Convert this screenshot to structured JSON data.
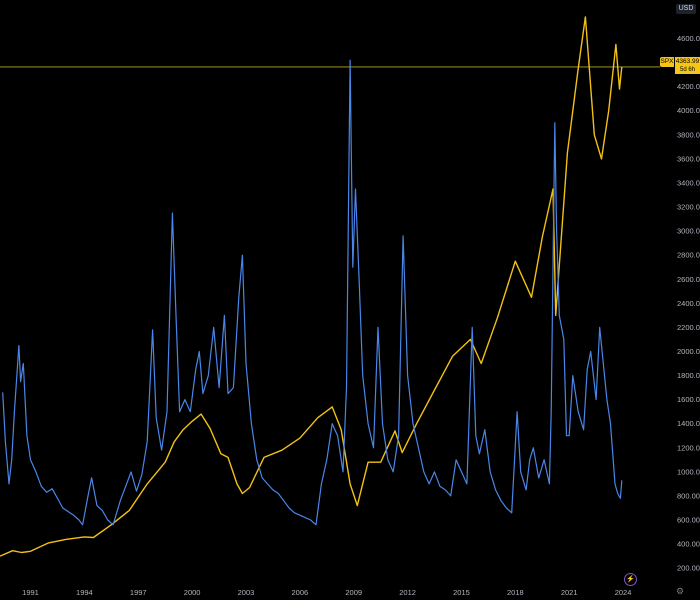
{
  "header": {
    "currency": "USD"
  },
  "price_tag": {
    "symbol": "SPX",
    "price": "4363.99",
    "countdown": "5d 6h"
  },
  "colors": {
    "spx": "#f2c114",
    "blue_series": "#4a86e8",
    "background": "#000000",
    "crosshair": "#b8a431"
  },
  "icons": {
    "lightning": "lightning-icon",
    "settings": "gear-icon"
  },
  "chart_data": {
    "type": "line",
    "x_unit": "year",
    "xlim": [
      1989.3,
      2025.5
    ],
    "ylim": [
      60,
      4920
    ],
    "y_ticks": [
      "200.00",
      "400.00",
      "600.00",
      "800.00",
      "1000.00",
      "1200.00",
      "1400.00",
      "1600.00",
      "1800.00",
      "2000.00",
      "2200.00",
      "2400.00",
      "2600.00",
      "2800.00",
      "3000.00",
      "3200.00",
      "3400.00",
      "3600.00",
      "3800.00",
      "4000.00",
      "4200.00",
      "4400.00",
      "4600.00"
    ],
    "x_ticks": [
      "1991",
      "1994",
      "1997",
      "2000",
      "2003",
      "2006",
      "2009",
      "2012",
      "2015",
      "2018",
      "2021",
      "2024"
    ],
    "current_price_line": 4363.99,
    "series": [
      {
        "name": "SPX",
        "points": [
          [
            1989.3,
            300
          ],
          [
            1990.0,
            345
          ],
          [
            1990.5,
            330
          ],
          [
            1991.0,
            340
          ],
          [
            1992.0,
            410
          ],
          [
            1993.0,
            440
          ],
          [
            1994.0,
            460
          ],
          [
            1994.5,
            455
          ],
          [
            1995.5,
            560
          ],
          [
            1996.5,
            680
          ],
          [
            1997.5,
            900
          ],
          [
            1998.5,
            1080
          ],
          [
            1999.0,
            1250
          ],
          [
            1999.5,
            1350
          ],
          [
            2000.0,
            1420
          ],
          [
            2000.5,
            1480
          ],
          [
            2001.0,
            1360
          ],
          [
            2001.6,
            1150
          ],
          [
            2002.0,
            1120
          ],
          [
            2002.5,
            900
          ],
          [
            2002.8,
            820
          ],
          [
            2003.2,
            870
          ],
          [
            2004.0,
            1120
          ],
          [
            2005.0,
            1180
          ],
          [
            2006.0,
            1280
          ],
          [
            2007.0,
            1450
          ],
          [
            2007.8,
            1540
          ],
          [
            2008.3,
            1350
          ],
          [
            2008.8,
            900
          ],
          [
            2009.2,
            720
          ],
          [
            2009.8,
            1080
          ],
          [
            2010.5,
            1080
          ],
          [
            2011.3,
            1340
          ],
          [
            2011.7,
            1160
          ],
          [
            2012.5,
            1400
          ],
          [
            2013.5,
            1680
          ],
          [
            2014.5,
            1960
          ],
          [
            2015.5,
            2100
          ],
          [
            2016.1,
            1900
          ],
          [
            2017.0,
            2280
          ],
          [
            2018.0,
            2750
          ],
          [
            2018.9,
            2450
          ],
          [
            2019.5,
            2950
          ],
          [
            2020.1,
            3350
          ],
          [
            2020.25,
            2300
          ],
          [
            2020.9,
            3650
          ],
          [
            2021.5,
            4350
          ],
          [
            2021.9,
            4780
          ],
          [
            2022.4,
            3800
          ],
          [
            2022.8,
            3600
          ],
          [
            2023.2,
            4000
          ],
          [
            2023.6,
            4550
          ],
          [
            2023.8,
            4180
          ],
          [
            2023.93,
            4363.99
          ]
        ]
      },
      {
        "name": "",
        "points": [
          [
            1989.45,
            1660
          ],
          [
            1989.6,
            1250
          ],
          [
            1989.8,
            900
          ],
          [
            1989.95,
            1100
          ],
          [
            1990.1,
            1500
          ],
          [
            1990.35,
            2050
          ],
          [
            1990.45,
            1750
          ],
          [
            1990.6,
            1900
          ],
          [
            1990.8,
            1300
          ],
          [
            1991.0,
            1100
          ],
          [
            1991.3,
            1000
          ],
          [
            1991.6,
            880
          ],
          [
            1991.9,
            830
          ],
          [
            1992.2,
            860
          ],
          [
            1992.5,
            780
          ],
          [
            1992.8,
            700
          ],
          [
            1993.1,
            670
          ],
          [
            1993.4,
            640
          ],
          [
            1993.7,
            600
          ],
          [
            1993.9,
            560
          ],
          [
            1994.2,
            800
          ],
          [
            1994.4,
            950
          ],
          [
            1994.7,
            720
          ],
          [
            1995.0,
            680
          ],
          [
            1995.3,
            600
          ],
          [
            1995.6,
            560
          ],
          [
            1996.0,
            760
          ],
          [
            1996.3,
            880
          ],
          [
            1996.6,
            1000
          ],
          [
            1996.9,
            840
          ],
          [
            1997.2,
            980
          ],
          [
            1997.5,
            1250
          ],
          [
            1997.8,
            2180
          ],
          [
            1998.0,
            1450
          ],
          [
            1998.3,
            1180
          ],
          [
            1998.6,
            1500
          ],
          [
            1998.9,
            3150
          ],
          [
            1999.1,
            2300
          ],
          [
            1999.3,
            1500
          ],
          [
            1999.6,
            1600
          ],
          [
            1999.9,
            1500
          ],
          [
            2000.2,
            1850
          ],
          [
            2000.4,
            2000
          ],
          [
            2000.6,
            1650
          ],
          [
            2000.9,
            1800
          ],
          [
            2001.2,
            2200
          ],
          [
            2001.5,
            1700
          ],
          [
            2001.8,
            2300
          ],
          [
            2002.0,
            1650
          ],
          [
            2002.3,
            1700
          ],
          [
            2002.6,
            2450
          ],
          [
            2002.8,
            2800
          ],
          [
            2003.0,
            1900
          ],
          [
            2003.3,
            1400
          ],
          [
            2003.6,
            1100
          ],
          [
            2003.9,
            950
          ],
          [
            2004.2,
            900
          ],
          [
            2004.5,
            850
          ],
          [
            2004.8,
            820
          ],
          [
            2005.1,
            760
          ],
          [
            2005.4,
            700
          ],
          [
            2005.7,
            660
          ],
          [
            2006.0,
            640
          ],
          [
            2006.3,
            620
          ],
          [
            2006.6,
            600
          ],
          [
            2006.9,
            560
          ],
          [
            2007.2,
            900
          ],
          [
            2007.5,
            1100
          ],
          [
            2007.8,
            1400
          ],
          [
            2008.1,
            1300
          ],
          [
            2008.4,
            1000
          ],
          [
            2008.6,
            1700
          ],
          [
            2008.8,
            4420
          ],
          [
            2008.95,
            2700
          ],
          [
            2009.1,
            3350
          ],
          [
            2009.3,
            2600
          ],
          [
            2009.5,
            1800
          ],
          [
            2009.8,
            1400
          ],
          [
            2010.1,
            1200
          ],
          [
            2010.35,
            2200
          ],
          [
            2010.6,
            1400
          ],
          [
            2010.9,
            1100
          ],
          [
            2011.2,
            1000
          ],
          [
            2011.5,
            1300
          ],
          [
            2011.75,
            2960
          ],
          [
            2012.0,
            1800
          ],
          [
            2012.3,
            1400
          ],
          [
            2012.6,
            1200
          ],
          [
            2012.9,
            1000
          ],
          [
            2013.2,
            900
          ],
          [
            2013.5,
            1000
          ],
          [
            2013.8,
            880
          ],
          [
            2014.1,
            850
          ],
          [
            2014.4,
            800
          ],
          [
            2014.7,
            1100
          ],
          [
            2015.0,
            1000
          ],
          [
            2015.3,
            900
          ],
          [
            2015.6,
            2200
          ],
          [
            2015.8,
            1300
          ],
          [
            2016.0,
            1150
          ],
          [
            2016.3,
            1350
          ],
          [
            2016.6,
            1000
          ],
          [
            2016.9,
            850
          ],
          [
            2017.2,
            760
          ],
          [
            2017.5,
            700
          ],
          [
            2017.8,
            660
          ],
          [
            2018.1,
            1500
          ],
          [
            2018.3,
            1000
          ],
          [
            2018.6,
            850
          ],
          [
            2018.8,
            1100
          ],
          [
            2019.0,
            1200
          ],
          [
            2019.3,
            950
          ],
          [
            2019.6,
            1100
          ],
          [
            2019.9,
            900
          ],
          [
            2020.0,
            1500
          ],
          [
            2020.2,
            3900
          ],
          [
            2020.3,
            3000
          ],
          [
            2020.45,
            2300
          ],
          [
            2020.7,
            2100
          ],
          [
            2020.85,
            1300
          ],
          [
            2021.0,
            1300
          ],
          [
            2021.2,
            1800
          ],
          [
            2021.5,
            1500
          ],
          [
            2021.8,
            1350
          ],
          [
            2022.0,
            1850
          ],
          [
            2022.2,
            2000
          ],
          [
            2022.5,
            1600
          ],
          [
            2022.7,
            2200
          ],
          [
            2022.9,
            1900
          ],
          [
            2023.1,
            1600
          ],
          [
            2023.3,
            1400
          ],
          [
            2023.55,
            900
          ],
          [
            2023.7,
            820
          ],
          [
            2023.85,
            780
          ],
          [
            2023.93,
            930
          ]
        ]
      }
    ]
  }
}
